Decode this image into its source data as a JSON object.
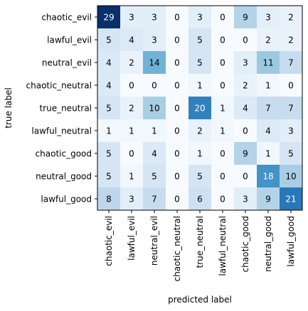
{
  "chart_data": {
    "type": "heatmap",
    "xlabel": "predicted label",
    "ylabel": "true label",
    "x_categories": [
      "chaotic_evil",
      "lawful_evil",
      "neutral_evil",
      "chaotic_neutral",
      "true_neutral",
      "lawful_neutral",
      "chaotic_good",
      "neutral_good",
      "lawful_good"
    ],
    "y_categories": [
      "chaotic_evil",
      "lawful_evil",
      "neutral_evil",
      "chaotic_neutral",
      "true_neutral",
      "lawful_neutral",
      "chaotic_good",
      "neutral_good",
      "lawful_good"
    ],
    "values": [
      [
        29,
        3,
        3,
        0,
        3,
        0,
        9,
        3,
        2
      ],
      [
        5,
        4,
        3,
        0,
        5,
        0,
        0,
        2,
        2
      ],
      [
        4,
        2,
        14,
        0,
        5,
        0,
        3,
        11,
        7
      ],
      [
        4,
        0,
        0,
        0,
        1,
        0,
        2,
        1,
        0
      ],
      [
        5,
        2,
        10,
        0,
        20,
        1,
        4,
        7,
        7
      ],
      [
        1,
        1,
        1,
        0,
        2,
        1,
        0,
        4,
        3
      ],
      [
        5,
        0,
        4,
        0,
        1,
        0,
        9,
        1,
        5
      ],
      [
        5,
        1,
        5,
        0,
        5,
        0,
        0,
        18,
        10
      ],
      [
        8,
        3,
        7,
        0,
        6,
        0,
        3,
        9,
        21
      ]
    ],
    "colormap": "Blues",
    "colors": {
      "low": "#f7fbff",
      "high": "#08306b"
    },
    "text_colors": {
      "dark_bg": "#ffffff",
      "light_bg": "#000000"
    }
  }
}
